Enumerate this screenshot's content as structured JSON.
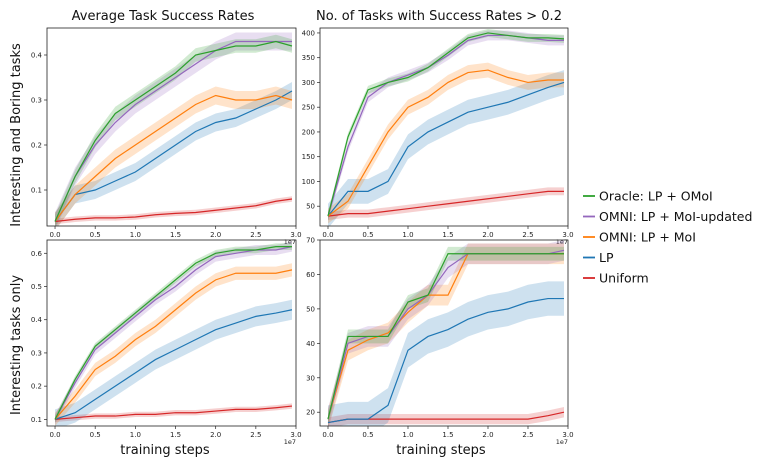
{
  "figure": {
    "col_titles": [
      "Average Task Success Rates",
      "No. of Tasks with Success Rates > 0.2"
    ],
    "row_labels": [
      "Interesting and Boring tasks",
      "Interesting tasks only"
    ],
    "xlabel": "training steps",
    "x_multiplier": "1e7"
  },
  "legend": [
    {
      "label": "Oracle: LP + OMoI",
      "color": "#2ca02c"
    },
    {
      "label": "OMNI: LP + MoI-updated",
      "color": "#9467bd"
    },
    {
      "label": "OMNI: LP + MoI",
      "color": "#ff7f0e"
    },
    {
      "label": "LP",
      "color": "#1f77b4"
    },
    {
      "label": "Uniform",
      "color": "#d62728"
    }
  ],
  "chart_data": [
    {
      "type": "line",
      "title": "Average Task Success Rates",
      "ylabel": "Interesting and Boring tasks",
      "xlabel": "",
      "xlim": [
        -0.1,
        3.0
      ],
      "ylim": [
        0.02,
        0.46
      ],
      "xticks": [
        "0.0",
        "0.5",
        "1.0",
        "1.5",
        "2.0",
        "2.5",
        "3.0"
      ],
      "yticks": [
        "0.1",
        "0.2",
        "0.3",
        "0.4"
      ],
      "ytick_values": [
        0.1,
        0.2,
        0.3,
        0.4
      ],
      "x": [
        0,
        0.25,
        0.5,
        0.75,
        1.0,
        1.25,
        1.5,
        1.75,
        2.0,
        2.25,
        2.5,
        2.75,
        2.95
      ],
      "series": [
        {
          "name": "Oracle: LP + OMoI",
          "values": [
            0.03,
            0.13,
            0.21,
            0.27,
            0.3,
            0.33,
            0.36,
            0.4,
            0.41,
            0.42,
            0.42,
            0.43,
            0.42
          ],
          "band": 0.015
        },
        {
          "name": "OMNI: LP + MoI-updated",
          "values": [
            0.03,
            0.13,
            0.2,
            0.25,
            0.29,
            0.32,
            0.35,
            0.38,
            0.41,
            0.43,
            0.43,
            0.43,
            0.43
          ],
          "band": 0.02
        },
        {
          "name": "OMNI: LP + MoI",
          "values": [
            0.03,
            0.09,
            0.13,
            0.17,
            0.2,
            0.23,
            0.26,
            0.29,
            0.31,
            0.3,
            0.3,
            0.31,
            0.3
          ],
          "band": 0.02
        },
        {
          "name": "LP",
          "values": [
            0.03,
            0.09,
            0.1,
            0.12,
            0.14,
            0.17,
            0.2,
            0.23,
            0.25,
            0.26,
            0.28,
            0.3,
            0.32
          ],
          "band": 0.02
        },
        {
          "name": "Uniform",
          "values": [
            0.03,
            0.035,
            0.038,
            0.038,
            0.04,
            0.045,
            0.048,
            0.05,
            0.055,
            0.06,
            0.065,
            0.075,
            0.08
          ],
          "band": 0.006
        }
      ]
    },
    {
      "type": "line",
      "title": "No. of Tasks with Success Rates > 0.2",
      "ylabel": "",
      "xlabel": "",
      "xlim": [
        -0.1,
        3.0
      ],
      "ylim": [
        10,
        410
      ],
      "xticks": [
        "0.0",
        "0.5",
        "1.0",
        "1.5",
        "2.0",
        "2.5",
        "3.0"
      ],
      "yticks": [
        "50",
        "100",
        "150",
        "200",
        "250",
        "300",
        "350",
        "400"
      ],
      "ytick_values": [
        50,
        100,
        150,
        200,
        250,
        300,
        350,
        400
      ],
      "x": [
        0,
        0.25,
        0.5,
        0.75,
        1.0,
        1.25,
        1.5,
        1.75,
        2.0,
        2.25,
        2.5,
        2.75,
        2.95
      ],
      "series": [
        {
          "name": "Oracle: LP + OMoI",
          "values": [
            30,
            190,
            285,
            300,
            310,
            330,
            360,
            390,
            400,
            395,
            390,
            390,
            388
          ],
          "band": 8
        },
        {
          "name": "OMNI: LP + MoI-updated",
          "values": [
            30,
            170,
            270,
            300,
            315,
            330,
            355,
            385,
            395,
            395,
            390,
            385,
            385
          ],
          "band": 10
        },
        {
          "name": "OMNI: LP + MoI",
          "values": [
            30,
            60,
            130,
            200,
            250,
            270,
            300,
            320,
            325,
            310,
            300,
            305,
            305
          ],
          "band": 15
        },
        {
          "name": "LP",
          "values": [
            30,
            80,
            80,
            100,
            170,
            200,
            220,
            240,
            250,
            260,
            275,
            290,
            300
          ],
          "band": 25
        },
        {
          "name": "Uniform",
          "values": [
            30,
            35,
            35,
            40,
            45,
            50,
            55,
            60,
            65,
            70,
            75,
            80,
            80
          ],
          "band": 8
        }
      ]
    },
    {
      "type": "line",
      "title": "",
      "ylabel": "Interesting tasks only",
      "xlabel": "training steps",
      "xlim": [
        -0.1,
        3.0
      ],
      "ylim": [
        0.08,
        0.64
      ],
      "xticks": [
        "0.0",
        "0.5",
        "1.0",
        "1.5",
        "2.0",
        "2.5",
        "3.0"
      ],
      "yticks": [
        "0.1",
        "0.2",
        "0.3",
        "0.4",
        "0.5",
        "0.6"
      ],
      "ytick_values": [
        0.1,
        0.2,
        0.3,
        0.4,
        0.5,
        0.6
      ],
      "x": [
        0,
        0.25,
        0.5,
        0.75,
        1.0,
        1.25,
        1.5,
        1.75,
        2.0,
        2.25,
        2.5,
        2.75,
        2.95
      ],
      "series": [
        {
          "name": "Oracle: LP + OMoI",
          "values": [
            0.1,
            0.22,
            0.32,
            0.37,
            0.42,
            0.47,
            0.52,
            0.57,
            0.6,
            0.61,
            0.61,
            0.62,
            0.62
          ],
          "band": 0.01
        },
        {
          "name": "OMNI: LP + MoI-updated",
          "values": [
            0.1,
            0.21,
            0.31,
            0.36,
            0.41,
            0.46,
            0.5,
            0.55,
            0.59,
            0.6,
            0.61,
            0.61,
            0.62
          ],
          "band": 0.015
        },
        {
          "name": "OMNI: LP + MoI",
          "values": [
            0.1,
            0.17,
            0.25,
            0.29,
            0.34,
            0.38,
            0.43,
            0.48,
            0.52,
            0.54,
            0.54,
            0.54,
            0.55
          ],
          "band": 0.02
        },
        {
          "name": "LP",
          "values": [
            0.1,
            0.12,
            0.16,
            0.2,
            0.24,
            0.28,
            0.31,
            0.34,
            0.37,
            0.39,
            0.41,
            0.42,
            0.43
          ],
          "band": 0.03
        },
        {
          "name": "Uniform",
          "values": [
            0.1,
            0.105,
            0.11,
            0.11,
            0.115,
            0.115,
            0.12,
            0.12,
            0.125,
            0.13,
            0.13,
            0.135,
            0.14
          ],
          "band": 0.008
        }
      ]
    },
    {
      "type": "line",
      "title": "",
      "ylabel": "",
      "xlabel": "training steps",
      "xlim": [
        -0.1,
        3.0
      ],
      "ylim": [
        16,
        70
      ],
      "xticks": [
        "0.0",
        "0.5",
        "1.0",
        "1.5",
        "2.0",
        "2.5",
        "3.0"
      ],
      "yticks": [
        "20",
        "30",
        "40",
        "50",
        "60",
        "70"
      ],
      "ytick_values": [
        20,
        30,
        40,
        50,
        60,
        70
      ],
      "x": [
        0,
        0.25,
        0.5,
        0.75,
        1.0,
        1.25,
        1.5,
        1.75,
        2.0,
        2.25,
        2.5,
        2.75,
        2.95
      ],
      "series": [
        {
          "name": "Oracle: LP + OMoI",
          "values": [
            18,
            42,
            42,
            42,
            52,
            54,
            66,
            66,
            66,
            66,
            66,
            66,
            66
          ],
          "band": 2
        },
        {
          "name": "OMNI: LP + MoI-updated",
          "values": [
            18,
            40,
            42,
            42,
            50,
            54,
            62,
            66,
            66,
            66,
            66,
            66,
            67
          ],
          "band": 3
        },
        {
          "name": "OMNI: LP + MoI",
          "values": [
            18,
            38,
            41,
            43,
            49,
            54,
            54,
            66,
            66,
            66,
            66,
            66,
            66
          ],
          "band": 3
        },
        {
          "name": "LP",
          "values": [
            17,
            18,
            18,
            22,
            38,
            42,
            44,
            47,
            49,
            50,
            52,
            53,
            53
          ],
          "band": 5
        },
        {
          "name": "Uniform",
          "values": [
            17,
            18,
            18,
            18,
            18,
            18,
            18,
            18,
            18,
            18,
            18,
            19,
            20
          ],
          "band": 1.5
        }
      ]
    }
  ]
}
